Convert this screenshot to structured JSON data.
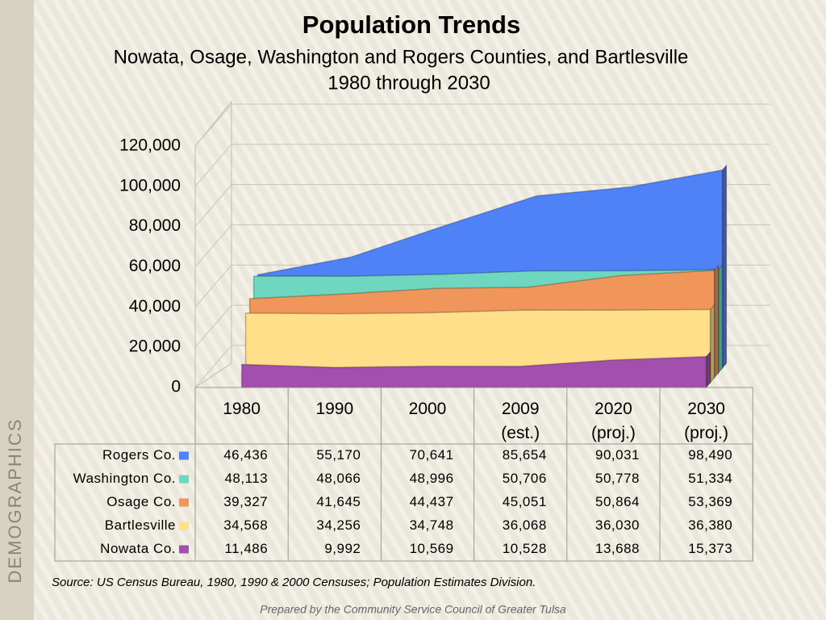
{
  "chart_data": {
    "type": "area3d",
    "title": "Population Trends",
    "subtitle": [
      "Nowata, Osage, Washington and Rogers Counties, and Bartlesville",
      "1980 through 2030"
    ],
    "categories": [
      "1980",
      "1990",
      "2000",
      "2009\n(est.)",
      "2020\n(proj.)",
      "2030\n(proj.)"
    ],
    "ylim": [
      0,
      120000
    ],
    "yticks": [
      0,
      {
        "value": 20000,
        "label": "20,000"
      },
      {
        "value": 40000,
        "label": "40,000"
      },
      {
        "value": 60000,
        "label": "60,000"
      },
      {
        "value": 80000,
        "label": "80,000"
      },
      {
        "value": 100000,
        "label": "100,000"
      },
      {
        "value": 120000,
        "label": "120,000"
      }
    ],
    "grid": true,
    "series": [
      {
        "name": "Rogers Co.",
        "color": "#4f81f7",
        "values": [
          46436,
          55170,
          70641,
          85654,
          90031,
          98490
        ],
        "value_labels": [
          "46,436",
          "55,170",
          "70,641",
          "85,654",
          "90,031",
          "98,490"
        ]
      },
      {
        "name": "Washington Co.",
        "color": "#6fd6c0",
        "values": [
          48113,
          48066,
          48996,
          50706,
          50778,
          51334
        ],
        "value_labels": [
          "48,113",
          "48,066",
          "48,996",
          "50,706",
          "50,778",
          "51,334"
        ]
      },
      {
        "name": "Osage Co.",
        "color": "#f0965a",
        "values": [
          39327,
          41645,
          44437,
          45051,
          50864,
          53369
        ],
        "value_labels": [
          "39,327",
          "41,645",
          "44,437",
          "45,051",
          "50,864",
          "53,369"
        ]
      },
      {
        "name": "Bartlesville",
        "color": "#ffdf8a",
        "values": [
          34568,
          34256,
          34748,
          36068,
          36030,
          36380
        ],
        "value_labels": [
          "34,568",
          "34,256",
          "34,748",
          "36,068",
          "36,030",
          "36,380"
        ]
      },
      {
        "name": "Nowata Co.",
        "color": "#a24fae",
        "values": [
          11486,
          9992,
          10569,
          10528,
          13688,
          15373
        ],
        "value_labels": [
          "11,486",
          "9,992",
          "10,569",
          "10,528",
          "13,688",
          "15,373"
        ]
      }
    ]
  },
  "source": "Source:  US Census Bureau, 1980, 1990 & 2000 Censuses; Population Estimates Division.",
  "footer": "Prepared by the Community Service Council of Greater Tulsa",
  "side_label": "DEMOGRAPHICS"
}
